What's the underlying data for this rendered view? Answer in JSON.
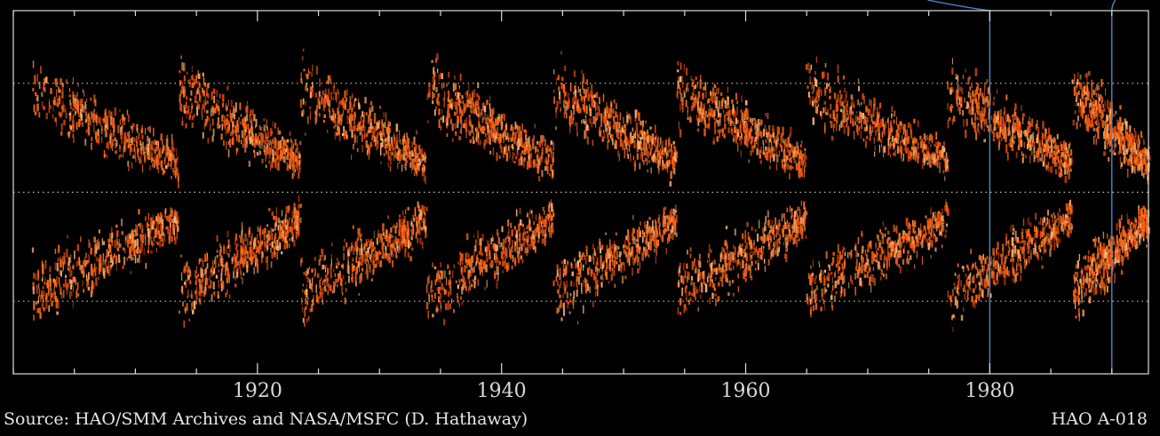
{
  "chart_data": {
    "type": "scatter",
    "description_kind": "sunspot butterfly diagram",
    "xlim": [
      1900,
      1993
    ],
    "ylim": [
      -50,
      50
    ],
    "x_ticks": [
      1920,
      1940,
      1960,
      1980
    ],
    "x_tick_labels": [
      "1920",
      "1940",
      "1960",
      "1980"
    ],
    "minor_tick_step": 5,
    "dotted_reference_lines_y": [
      -30,
      0,
      30
    ],
    "vertical_marker_lines_x": [
      1980,
      1990
    ],
    "grid": false,
    "legend": "none",
    "cycles": [
      {
        "start": 1901.5,
        "end": 1913.5
      },
      {
        "start": 1913.5,
        "end": 1923.5
      },
      {
        "start": 1923.5,
        "end": 1933.8
      },
      {
        "start": 1933.8,
        "end": 1944.2
      },
      {
        "start": 1944.2,
        "end": 1954.3
      },
      {
        "start": 1954.3,
        "end": 1964.9
      },
      {
        "start": 1964.9,
        "end": 1976.5
      },
      {
        "start": 1976.5,
        "end": 1986.7
      },
      {
        "start": 1986.7,
        "end": 1993
      }
    ]
  },
  "footer": {
    "source": "Source: HAO/SMM Archives and NASA/MSFC (D. Hathaway)",
    "reference": "HAO A-018"
  },
  "colors": {
    "background": "#000000",
    "spot_dark": "#e8480a",
    "spot_mid": "#ff6a18",
    "spot_light": "#ffb070",
    "axis": "#dcdcdc",
    "dotted_line": "#c8c8a0",
    "marker_line": "#4a88c8"
  }
}
